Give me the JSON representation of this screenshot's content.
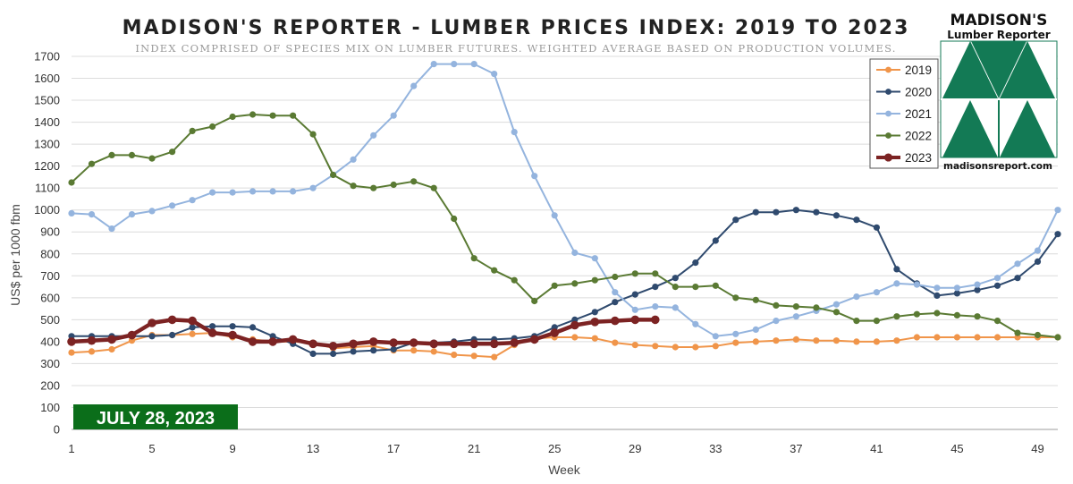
{
  "chart_data": {
    "type": "line",
    "title": "MADISON'S REPORTER - LUMBER PRICES INDEX: 2019 TO 2023",
    "subtitle": "INDEX COMPRISED OF SPECIES MIX ON LUMBER FUTURES. WEIGHTED AVERAGE BASED ON PRODUCTION VOLUMES.",
    "xlabel": "Week",
    "ylabel": "US$ per 1000 fbm",
    "xlim": [
      1,
      50
    ],
    "ylim": [
      0,
      1700
    ],
    "x_ticks": [
      1,
      5,
      9,
      13,
      17,
      21,
      25,
      29,
      33,
      37,
      41,
      45,
      49
    ],
    "y_ticks": [
      0,
      100,
      200,
      300,
      400,
      500,
      600,
      700,
      800,
      900,
      1000,
      1100,
      1200,
      1300,
      1400,
      1500,
      1600,
      1700
    ],
    "grid": "horizontal",
    "legend_position": "top-right",
    "date_label": "JULY 28, 2023",
    "series": [
      {
        "name": "2019",
        "color": "#F0954A",
        "line_width": 2,
        "marker_r": 3.6,
        "values": [
          350,
          355,
          365,
          405,
          430,
          430,
          435,
          440,
          420,
          410,
          400,
          400,
          395,
          370,
          375,
          380,
          360,
          360,
          355,
          340,
          335,
          330,
          385,
          415,
          420,
          420,
          415,
          395,
          385,
          380,
          375,
          375,
          380,
          395,
          400,
          405,
          410,
          405,
          405,
          400,
          400,
          405,
          420,
          420,
          420,
          420,
          420,
          420,
          420,
          420
        ]
      },
      {
        "name": "2020",
        "color": "#2F4A6E",
        "line_width": 2,
        "marker_r": 3.6,
        "values": [
          425,
          425,
          425,
          425,
          425,
          430,
          465,
          470,
          470,
          465,
          425,
          390,
          345,
          345,
          355,
          360,
          365,
          395,
          395,
          400,
          410,
          410,
          415,
          425,
          465,
          500,
          535,
          580,
          615,
          650,
          690,
          760,
          860,
          955,
          990,
          990,
          1000,
          990,
          975,
          955,
          920,
          730,
          665,
          610,
          620,
          635,
          655,
          690,
          765,
          890
        ]
      },
      {
        "name": "2021",
        "color": "#94B4DE",
        "line_width": 2,
        "marker_r": 3.6,
        "values": [
          985,
          980,
          915,
          980,
          995,
          1020,
          1045,
          1080,
          1080,
          1085,
          1085,
          1085,
          1100,
          1160,
          1230,
          1340,
          1430,
          1565,
          1665,
          1665,
          1665,
          1620,
          1355,
          1155,
          975,
          805,
          780,
          625,
          545,
          560,
          555,
          480,
          425,
          435,
          455,
          495,
          515,
          540,
          570,
          605,
          625,
          665,
          660,
          645,
          645,
          660,
          690,
          755,
          815,
          1000
        ]
      },
      {
        "name": "2022",
        "color": "#5A7A33",
        "line_width": 2,
        "marker_r": 3.6,
        "values": [
          1125,
          1210,
          1250,
          1250,
          1235,
          1265,
          1360,
          1380,
          1425,
          1435,
          1430,
          1430,
          1345,
          1160,
          1110,
          1100,
          1115,
          1130,
          1100,
          960,
          780,
          725,
          680,
          585,
          655,
          665,
          680,
          695,
          710,
          710,
          650,
          650,
          655,
          600,
          590,
          565,
          560,
          555,
          535,
          495,
          495,
          515,
          525,
          530,
          520,
          515,
          495,
          440,
          430,
          420
        ]
      },
      {
        "name": "2023",
        "color": "#7C2323",
        "line_width": 4.5,
        "marker_r": 4.8,
        "values": [
          400,
          405,
          410,
          430,
          485,
          500,
          495,
          440,
          430,
          400,
          400,
          410,
          390,
          380,
          390,
          400,
          395,
          395,
          390,
          390,
          390,
          390,
          395,
          410,
          440,
          475,
          490,
          495,
          500,
          500
        ]
      }
    ]
  },
  "logo": {
    "name_line1": "MADISON'S",
    "name_line2": "Lumber Reporter",
    "url": "madisonsreport.com",
    "green": "#137A55"
  }
}
